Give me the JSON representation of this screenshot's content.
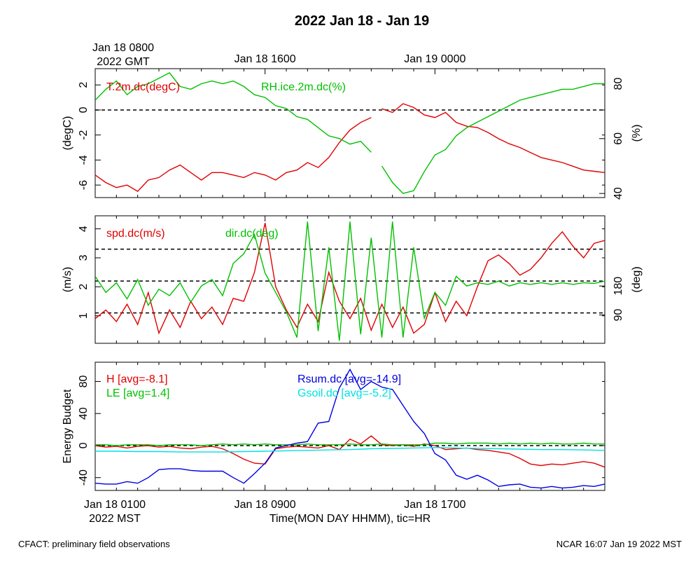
{
  "page": {
    "title": "2022 Jan 18 - Jan 19",
    "footer_left": "CFACT: preliminary field observations",
    "footer_right": "NCAR 16:07 Jan 19 2022 MST"
  },
  "top_axis": {
    "ticks": [
      {
        "x": 0,
        "label_lines": [
          "Jan 18 0800",
          "2022 GMT"
        ]
      },
      {
        "x": 8,
        "label_lines": [
          "Jan 18 1600"
        ]
      },
      {
        "x": 16,
        "label_lines": [
          "Jan 19 0000"
        ]
      }
    ]
  },
  "bottom_axis": {
    "title": "Time(MON DAY HHMM), tic=HR",
    "ticks": [
      {
        "x": 0,
        "label_lines": [
          "Jan 18 0100",
          "2022 MST"
        ]
      },
      {
        "x": 8,
        "label_lines": [
          "Jan 18 0900"
        ]
      },
      {
        "x": 16,
        "label_lines": [
          "Jan 18 1700"
        ]
      }
    ]
  },
  "colors": {
    "red": "#e00000",
    "green": "#00c000",
    "blue": "#0000e0",
    "cyan": "#00e0e0",
    "black": "#000000"
  },
  "chart_data": [
    {
      "type": "line",
      "panel": "temperature-humidity",
      "xlim": [
        0,
        24
      ],
      "left_axis": {
        "label": "(degC)",
        "ylim": [
          -7,
          3.3
        ],
        "ticks": [
          -6,
          -4,
          -2,
          0,
          2
        ]
      },
      "right_axis": {
        "label": "(%)",
        "ylim": [
          38.5,
          85.5
        ],
        "ticks": [
          40,
          60,
          80
        ]
      },
      "reference_lines_left": [
        0
      ],
      "series": [
        {
          "name": "T.2m.dc(degC)",
          "axis": "left",
          "color": "#e00000",
          "gap_after_x": 13,
          "x": [
            0,
            0.5,
            1,
            1.5,
            2,
            2.5,
            3,
            3.5,
            4,
            4.5,
            5,
            5.5,
            6,
            6.5,
            7,
            7.5,
            8,
            8.5,
            9,
            9.5,
            10,
            10.5,
            11,
            11.5,
            12,
            12.5,
            13,
            13.5,
            14,
            14.5,
            15,
            15.5,
            16,
            16.5,
            17,
            17.5,
            18,
            18.5,
            19,
            19.5,
            20,
            20.5,
            21,
            21.5,
            22,
            22.5,
            23,
            23.5,
            24
          ],
          "y": [
            -5.2,
            -5.8,
            -6.2,
            -6.0,
            -6.5,
            -5.6,
            -5.4,
            -4.8,
            -4.4,
            -5.0,
            -5.6,
            -5.0,
            -5.0,
            -5.2,
            -5.4,
            -5.0,
            -5.2,
            -5.6,
            -5.0,
            -4.8,
            -4.2,
            -4.6,
            -3.8,
            -2.6,
            -1.6,
            -1.0,
            -0.6,
            0.1,
            -0.2,
            0.5,
            0.2,
            -0.4,
            -0.6,
            -0.2,
            -1.0,
            -1.3,
            -1.4,
            -1.8,
            -2.3,
            -2.7,
            -3.0,
            -3.4,
            -3.8,
            -4.0,
            -4.2,
            -4.5,
            -4.8,
            -4.9,
            -5.0
          ]
        },
        {
          "name": "RH.ice.2m.dc(%)",
          "axis": "right",
          "color": "#00c000",
          "gap_after_x": 13,
          "x": [
            0,
            0.5,
            1,
            1.5,
            2,
            2.5,
            3,
            3.5,
            4,
            4.5,
            5,
            5.5,
            6,
            6.5,
            7,
            7.5,
            8,
            8.5,
            9,
            9.5,
            10,
            10.5,
            11,
            11.5,
            12,
            12.5,
            13,
            13.5,
            14,
            14.5,
            15,
            15.5,
            16,
            16.5,
            17,
            17.5,
            18,
            18.5,
            19,
            19.5,
            20,
            20.5,
            21,
            21.5,
            22,
            22.5,
            23,
            23.5,
            24
          ],
          "y": [
            74,
            78,
            81,
            76,
            79,
            80,
            82,
            84,
            79,
            78,
            80,
            81,
            80,
            81,
            79,
            76,
            75,
            72,
            71,
            68,
            67,
            64,
            61,
            60,
            58,
            59,
            55,
            50,
            44,
            40,
            41,
            48,
            54,
            56,
            61,
            64,
            66,
            68,
            70,
            72,
            74,
            75,
            76,
            77,
            78,
            78,
            79,
            80,
            80
          ]
        }
      ]
    },
    {
      "type": "line",
      "panel": "wind",
      "xlim": [
        0,
        24
      ],
      "left_axis": {
        "label": "(m/s)",
        "ylim": [
          0.05,
          4.45
        ],
        "ticks": [
          1,
          2,
          3,
          4
        ]
      },
      "right_axis": {
        "label": "(deg)",
        "ylim": [
          2,
          398
        ],
        "ticks": [
          90,
          180
        ]
      },
      "reference_lines_left": [
        1.1,
        2.2,
        3.3
      ],
      "series": [
        {
          "name": "spd.dc(m/s)",
          "axis": "left",
          "color": "#e00000",
          "x": [
            0,
            0.5,
            1,
            1.5,
            2,
            2.5,
            3,
            3.5,
            4,
            4.5,
            5,
            5.5,
            6,
            6.5,
            7,
            7.5,
            8,
            8.5,
            9,
            9.5,
            10,
            10.5,
            11,
            11.5,
            12,
            12.5,
            13,
            13.5,
            14,
            14.5,
            15,
            15.5,
            16,
            16.5,
            17,
            17.5,
            18,
            18.5,
            19,
            19.5,
            20,
            20.5,
            21,
            21.5,
            22,
            22.5,
            23,
            23.5,
            24
          ],
          "y": [
            0.9,
            1.2,
            0.8,
            1.4,
            0.7,
            1.8,
            0.4,
            1.2,
            0.6,
            1.5,
            0.9,
            1.3,
            0.7,
            1.6,
            1.5,
            2.5,
            4.2,
            2.0,
            1.2,
            0.6,
            1.4,
            0.8,
            2.5,
            1.5,
            0.9,
            1.6,
            0.5,
            1.4,
            0.6,
            1.3,
            0.4,
            0.7,
            1.8,
            0.8,
            1.5,
            1.0,
            2.0,
            2.9,
            3.1,
            2.8,
            2.4,
            2.6,
            3.0,
            3.5,
            3.9,
            3.4,
            3.0,
            3.5,
            3.6
          ]
        },
        {
          "name": "dir.dc(deg)",
          "axis": "right",
          "color": "#00c000",
          "x": [
            0,
            0.5,
            1,
            1.5,
            2,
            2.5,
            3,
            3.5,
            4,
            4.5,
            5,
            5.5,
            6,
            6.5,
            7,
            7.5,
            8,
            8.5,
            9,
            9.5,
            10,
            10.5,
            11,
            11.5,
            12,
            12.5,
            13,
            13.5,
            14,
            14.5,
            15,
            15.5,
            16,
            16.5,
            17,
            17.5,
            18,
            18.5,
            19,
            19.5,
            20,
            20.5,
            21,
            21.5,
            22,
            22.5,
            23,
            23.5,
            24
          ],
          "y": [
            210,
            160,
            190,
            140,
            200,
            120,
            170,
            150,
            190,
            130,
            180,
            200,
            150,
            250,
            280,
            340,
            220,
            160,
            100,
            20,
            380,
            40,
            300,
            10,
            380,
            30,
            330,
            20,
            380,
            20,
            300,
            80,
            160,
            120,
            210,
            180,
            190,
            185,
            195,
            180,
            190,
            185,
            190,
            185,
            190,
            185,
            190,
            188,
            195
          ]
        }
      ]
    },
    {
      "type": "line",
      "panel": "energy-budget",
      "xlim": [
        0,
        24
      ],
      "left_axis": {
        "label": "Energy Budget",
        "ylim": [
          -56,
          104
        ],
        "ticks": [
          -40,
          0,
          40,
          80
        ]
      },
      "reference_lines_left": [
        0
      ],
      "series": [
        {
          "name": "H [avg=-8.1]",
          "color": "#e00000",
          "x": [
            0,
            0.5,
            1,
            1.5,
            2,
            2.5,
            3,
            3.5,
            4,
            4.5,
            5,
            5.5,
            6,
            6.5,
            7,
            7.5,
            8,
            8.5,
            9,
            9.5,
            10,
            10.5,
            11,
            11.5,
            12,
            12.5,
            13,
            13.5,
            14,
            14.5,
            15,
            15.5,
            16,
            16.5,
            17,
            17.5,
            18,
            18.5,
            19,
            19.5,
            20,
            20.5,
            21,
            21.5,
            22,
            22.5,
            23,
            23.5,
            24
          ],
          "y": [
            0,
            -2,
            -1,
            -3,
            -1,
            0,
            -2,
            -1,
            -3,
            -4,
            -2,
            -1,
            -4,
            -10,
            -17,
            -22,
            -23,
            -4,
            -2,
            -1,
            -2,
            -3,
            0,
            -5,
            8,
            2,
            12,
            1,
            0,
            1,
            -1,
            2,
            0,
            -5,
            -4,
            -3,
            -5,
            -6,
            -8,
            -10,
            -16,
            -23,
            -25,
            -23,
            -24,
            -22,
            -20,
            -22,
            -27
          ]
        },
        {
          "name": "LE [avg=1.4]",
          "color": "#00c000",
          "x": [
            0,
            0.5,
            1,
            1.5,
            2,
            2.5,
            3,
            3.5,
            4,
            4.5,
            5,
            5.5,
            6,
            6.5,
            7,
            7.5,
            8,
            8.5,
            9,
            9.5,
            10,
            10.5,
            11,
            11.5,
            12,
            12.5,
            13,
            13.5,
            14,
            14.5,
            15,
            15.5,
            16,
            16.5,
            17,
            17.5,
            18,
            18.5,
            19,
            19.5,
            20,
            20.5,
            21,
            21.5,
            22,
            22.5,
            23,
            23.5,
            24
          ],
          "y": [
            1,
            1,
            0,
            1,
            1,
            1,
            0,
            1,
            1,
            1,
            0,
            1,
            2,
            1,
            2,
            1,
            2,
            1,
            1,
            1,
            2,
            1,
            1,
            1,
            2,
            1,
            1,
            2,
            1,
            1,
            1,
            1,
            3,
            3,
            2,
            3,
            3,
            3,
            2,
            3,
            2,
            3,
            2,
            3,
            2,
            2,
            3,
            2,
            2
          ]
        },
        {
          "name": "Rsum.dc [avg=-14.9]",
          "color": "#0000e0",
          "x": [
            0,
            0.5,
            1,
            1.5,
            2,
            2.5,
            3,
            3.5,
            4,
            4.5,
            5,
            5.5,
            6,
            6.5,
            7,
            7.5,
            8,
            8.5,
            9,
            9.5,
            10,
            10.5,
            11,
            11.5,
            12,
            12.5,
            13,
            13.5,
            14,
            14.5,
            15,
            15.5,
            16,
            16.5,
            17,
            17.5,
            18,
            18.5,
            19,
            19.5,
            20,
            20.5,
            21,
            21.5,
            22,
            22.5,
            23,
            23.5,
            24
          ],
          "y": [
            -47,
            -48,
            -48,
            -45,
            -47,
            -40,
            -30,
            -29,
            -29,
            -31,
            -32,
            -32,
            -32,
            -40,
            -47,
            -35,
            -22,
            -3,
            0,
            3,
            5,
            28,
            30,
            72,
            95,
            70,
            80,
            73,
            70,
            50,
            30,
            15,
            -10,
            -18,
            -37,
            -42,
            -37,
            -43,
            -51,
            -49,
            -48,
            -52,
            -53,
            -51,
            -53,
            -52,
            -50,
            -51,
            -48
          ]
        },
        {
          "name": "Gsoil.dc [avg=-5.2]",
          "color": "#00e0e0",
          "x": [
            0,
            1,
            2,
            3,
            4,
            5,
            6,
            7,
            8,
            9,
            10,
            11,
            12,
            13,
            14,
            15,
            16,
            17,
            18,
            19,
            20,
            21,
            22,
            23,
            24
          ],
          "y": [
            -7,
            -7,
            -7.5,
            -7.5,
            -8,
            -8,
            -8,
            -7.5,
            -7,
            -6.5,
            -6,
            -5.5,
            -5,
            -4,
            -3.5,
            -3,
            -2.5,
            -3,
            -3.5,
            -4,
            -4.5,
            -5,
            -5,
            -5.5,
            -6
          ]
        }
      ]
    }
  ]
}
